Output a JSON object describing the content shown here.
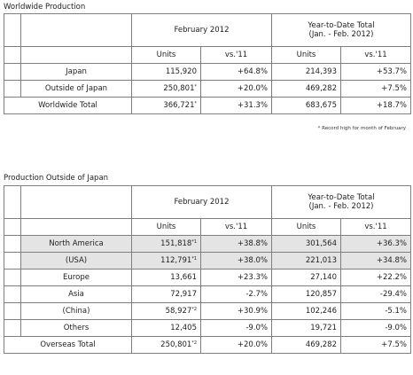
{
  "section1": {
    "title": "Worldwide Production",
    "header": {
      "month_label": "February 2012",
      "ytd_label_line1": "Year-to-Date Total",
      "ytd_label_line2": "(Jan. - Feb. 2012)",
      "units_label": "Units",
      "vs_label": "vs.'11",
      "ytd_units_label": "Units",
      "ytd_vs_label": "vs.'11"
    },
    "rows": [
      {
        "label": "Japan",
        "units": "115,920",
        "mark": "",
        "vs": "+64.8%",
        "ytd_units": "214,393",
        "ytd_vs": "+53.7%"
      },
      {
        "label": "Outside of Japan",
        "units": "250,801",
        "mark": "*",
        "vs": "+20.0%",
        "ytd_units": "469,282",
        "ytd_vs": "+7.5%"
      },
      {
        "label": "Worldwide Total",
        "units": "366,721",
        "mark": "*",
        "vs": "+31.3%",
        "ytd_units": "683,675",
        "ytd_vs": "+18.7%"
      }
    ],
    "footnote": "* Record high for month of February"
  },
  "section2": {
    "title": "Production Outside of Japan",
    "header": {
      "month_label": "February 2012",
      "ytd_label_line1": "Year-to-Date Total",
      "ytd_label_line2": "(Jan. - Feb. 2012)",
      "units_label": "Units",
      "vs_label": "vs.'11",
      "ytd_units_label": "Units",
      "ytd_vs_label": "vs.'11"
    },
    "rows": [
      {
        "label": "North America",
        "units": "151,818",
        "mark": "*1",
        "vs": "+38.8%",
        "ytd_units": "301,564",
        "ytd_vs": "+36.3%"
      },
      {
        "label": "(USA)",
        "units": "112,791",
        "mark": "*1",
        "vs": "+38.0%",
        "ytd_units": "221,013",
        "ytd_vs": "+34.8%"
      },
      {
        "label": "Europe",
        "units": "13,661",
        "mark": "",
        "vs": "+23.3%",
        "ytd_units": "27,140",
        "ytd_vs": "+22.2%"
      },
      {
        "label": "Asia",
        "units": "72,917",
        "mark": "",
        "vs": "-2.7%",
        "ytd_units": "120,857",
        "ytd_vs": "-29.4%"
      },
      {
        "label": "(China)",
        "units": "58,927",
        "mark": "*2",
        "vs": "+30.9%",
        "ytd_units": "102,246",
        "ytd_vs": "-5.1%"
      },
      {
        "label": "Others",
        "units": "12,405",
        "mark": "",
        "vs": "-9.0%",
        "ytd_units": "19,721",
        "ytd_vs": "-9.0%"
      },
      {
        "label": "Overseas Total",
        "units": "250,801",
        "mark": "*2",
        "vs": "+20.0%",
        "ytd_units": "469,282",
        "ytd_vs": "+7.5%"
      }
    ]
  }
}
